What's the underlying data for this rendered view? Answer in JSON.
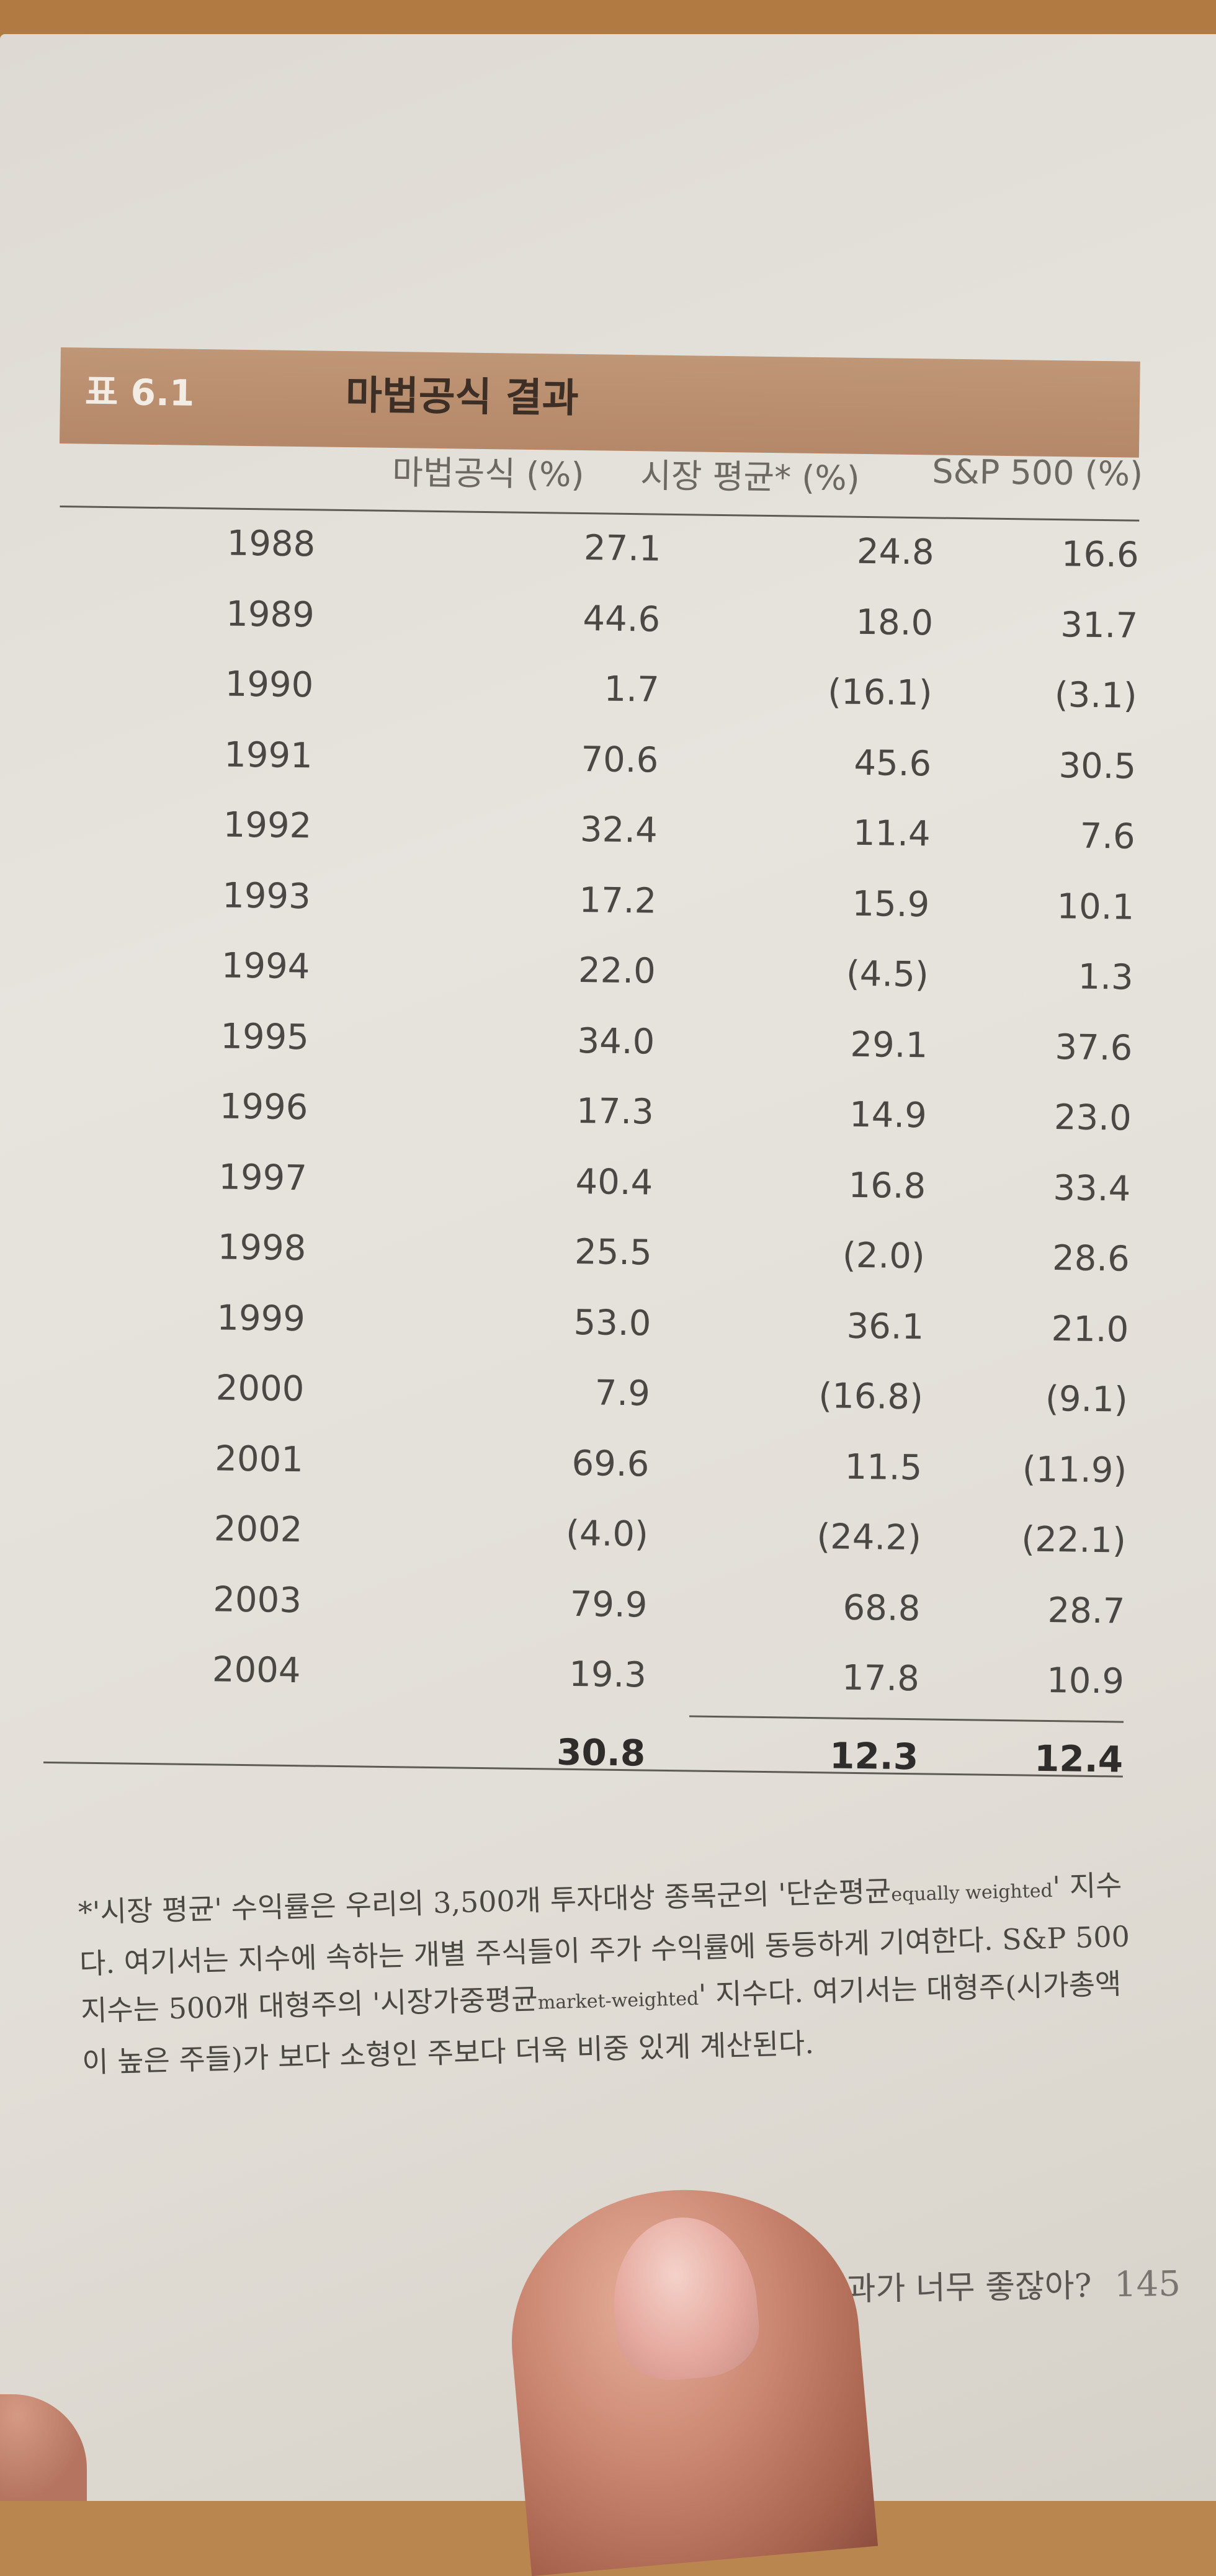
{
  "table": {
    "id": "표 6.1",
    "title": "마법공식 결과",
    "columns": [
      "마법공식 (%)",
      "시장 평균* (%)",
      "S&P 500 (%)"
    ],
    "rows": [
      {
        "year": "1988",
        "magic": "27.1",
        "market": "24.8",
        "sp500": "16.6"
      },
      {
        "year": "1989",
        "magic": "44.6",
        "market": "18.0",
        "sp500": "31.7"
      },
      {
        "year": "1990",
        "magic": "1.7",
        "market": "(16.1)",
        "sp500": "(3.1)"
      },
      {
        "year": "1991",
        "magic": "70.6",
        "market": "45.6",
        "sp500": "30.5"
      },
      {
        "year": "1992",
        "magic": "32.4",
        "market": "11.4",
        "sp500": "7.6"
      },
      {
        "year": "1993",
        "magic": "17.2",
        "market": "15.9",
        "sp500": "10.1"
      },
      {
        "year": "1994",
        "magic": "22.0",
        "market": "(4.5)",
        "sp500": "1.3"
      },
      {
        "year": "1995",
        "magic": "34.0",
        "market": "29.1",
        "sp500": "37.6"
      },
      {
        "year": "1996",
        "magic": "17.3",
        "market": "14.9",
        "sp500": "23.0"
      },
      {
        "year": "1997",
        "magic": "40.4",
        "market": "16.8",
        "sp500": "33.4"
      },
      {
        "year": "1998",
        "magic": "25.5",
        "market": "(2.0)",
        "sp500": "28.6"
      },
      {
        "year": "1999",
        "magic": "53.0",
        "market": "36.1",
        "sp500": "21.0"
      },
      {
        "year": "2000",
        "magic": "7.9",
        "market": "(16.8)",
        "sp500": "(9.1)"
      },
      {
        "year": "2001",
        "magic": "69.6",
        "market": "11.5",
        "sp500": "(11.9)"
      },
      {
        "year": "2002",
        "magic": "(4.0)",
        "market": "(24.2)",
        "sp500": "(22.1)"
      },
      {
        "year": "2003",
        "magic": "79.9",
        "market": "68.8",
        "sp500": "28.7"
      },
      {
        "year": "2004",
        "magic": "19.3",
        "market": "17.8",
        "sp500": "10.9"
      }
    ],
    "totals": {
      "magic": "30.8",
      "market": "12.3",
      "sp500": "12.4"
    }
  },
  "footnote": {
    "part1": "*'시장 평균' 수익률은 우리의 3,500개 투자대상 종목군의 '단순평균",
    "part1_en": "equally weighted",
    "part2": "' 지수다. 여기서는 지수에 속하는 개별 주식들이 주가 수익률에 동등하게 기여한다. S&P 500 지수는 500개 대형주의 '시장가중평균",
    "part2_en": "market-weighted",
    "part3": "' 지수다. 여기서는 대형주(시가총액이 높은 주들)가 보다 소형인 주보다 더욱 비중 있게 계산된다."
  },
  "footer": {
    "text": "가! 결과가 너무 좋잖아?",
    "page_number": "145"
  }
}
